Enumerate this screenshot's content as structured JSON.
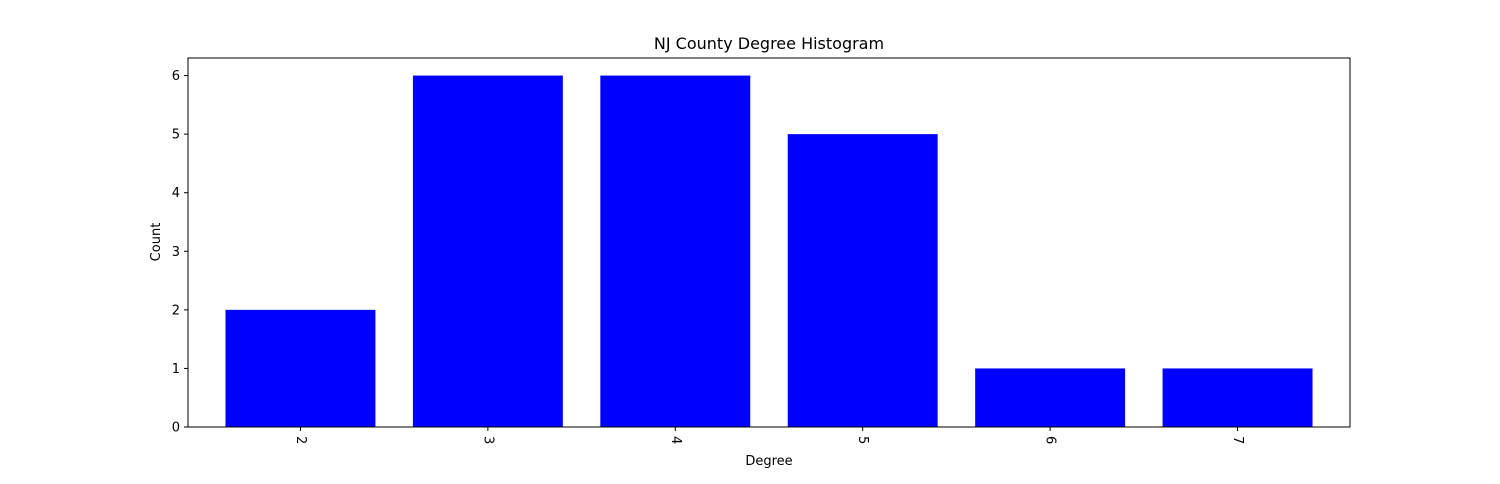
{
  "chart_data": {
    "type": "bar",
    "title": "NJ County Degree Histogram",
    "xlabel": "Degree",
    "ylabel": "Count",
    "categories": [
      "2",
      "3",
      "4",
      "5",
      "6",
      "7"
    ],
    "values": [
      2,
      6,
      6,
      5,
      1,
      1
    ],
    "ylim": [
      0,
      6.3
    ],
    "yticks": [
      0,
      1,
      2,
      3,
      4,
      5,
      6
    ],
    "x_tick_rotation": "rotated 90 degrees clockwise",
    "bar_color": "#0000ff",
    "grid": false,
    "legend": "none"
  }
}
